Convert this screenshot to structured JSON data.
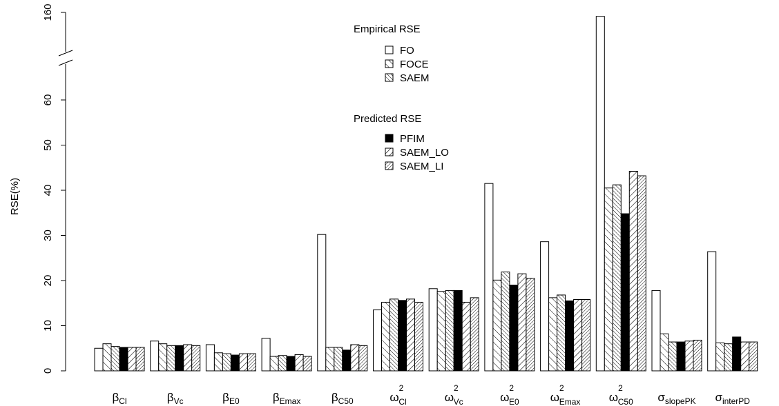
{
  "chart_data": {
    "type": "bar",
    "ylabel": "RSE(%)",
    "y_ticks_lower": [
      0,
      10,
      20,
      30,
      40,
      50,
      60
    ],
    "y_ticks_upper": [
      160
    ],
    "y_axis_break": true,
    "y_lower_range": [
      0,
      70
    ],
    "categories": [
      {
        "base": "β",
        "sub": "Cl",
        "sup": ""
      },
      {
        "base": "β",
        "sub": "Vc",
        "sup": ""
      },
      {
        "base": "β",
        "sub": "E0",
        "sup": ""
      },
      {
        "base": "β",
        "sub": "Emax",
        "sup": ""
      },
      {
        "base": "β",
        "sub": "C50",
        "sup": ""
      },
      {
        "base": "ω",
        "sub": "Cl",
        "sup": "2"
      },
      {
        "base": "ω",
        "sub": "Vc",
        "sup": "2"
      },
      {
        "base": "ω",
        "sub": "E0",
        "sup": "2"
      },
      {
        "base": "ω",
        "sub": "Emax",
        "sup": "2"
      },
      {
        "base": "ω",
        "sub": "C50",
        "sup": "2"
      },
      {
        "base": "σ",
        "sub": "slopePK",
        "sup": ""
      },
      {
        "base": "σ",
        "sub": "interPD",
        "sup": ""
      }
    ],
    "series": [
      {
        "name": "FO",
        "group": "empirical",
        "pattern": "empty",
        "values": [
          5.0,
          6.6,
          5.8,
          7.2,
          30.2,
          13.5,
          18.2,
          41.5,
          28.6,
          158,
          17.8,
          26.4
        ]
      },
      {
        "name": "FOCE",
        "group": "empirical",
        "pattern": "hatch-back",
        "values": [
          6.0,
          6.0,
          4.0,
          3.2,
          5.2,
          15.2,
          17.6,
          20.1,
          16.2,
          40.5,
          8.2,
          6.2
        ]
      },
      {
        "name": "SAEM",
        "group": "empirical",
        "pattern": "hatch-back-dense",
        "values": [
          5.4,
          5.6,
          3.8,
          3.4,
          5.2,
          15.9,
          17.8,
          21.9,
          16.8,
          41.2,
          6.4,
          6.0
        ]
      },
      {
        "name": "PFIM",
        "group": "predicted",
        "pattern": "solid",
        "values": [
          5.2,
          5.6,
          3.5,
          3.2,
          4.6,
          15.6,
          17.8,
          19.0,
          15.5,
          34.8,
          6.4,
          7.5
        ]
      },
      {
        "name": "SAEM_LO",
        "group": "predicted",
        "pattern": "hatch-fwd",
        "values": [
          5.2,
          5.8,
          3.8,
          3.6,
          5.8,
          15.9,
          15.2,
          21.5,
          15.8,
          44.2,
          6.6,
          6.4
        ]
      },
      {
        "name": "SAEM_LI",
        "group": "predicted",
        "pattern": "hatch-fwd-dense",
        "values": [
          5.2,
          5.6,
          3.8,
          3.2,
          5.6,
          15.2,
          16.2,
          20.5,
          15.8,
          43.2,
          6.8,
          6.4
        ]
      }
    ],
    "legend": {
      "placement": "top-center",
      "empirical_title": "Empirical RSE",
      "predicted_title": "Predicted RSE"
    },
    "grid": false
  }
}
